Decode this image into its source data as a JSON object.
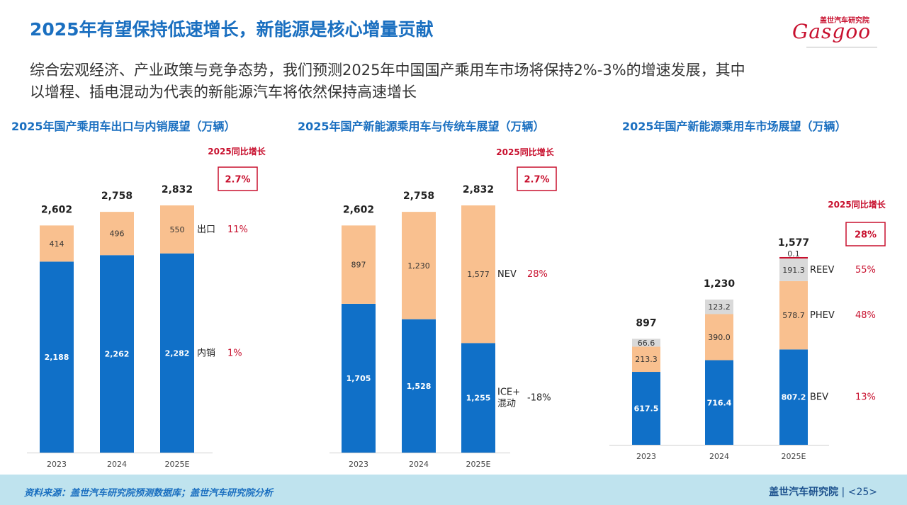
{
  "header": {
    "title": "2025年有望保持低速增长，新能源是核心增量贡献",
    "subtitle_line1": "综合宏观经济、产业政策与竞争态势，我们预测2025年中国国产乘用车市场将保持2%-3%的增速发展，其中",
    "subtitle_line2": "以增程、插电混动为代表的新能源汽车将依然保持高速增长"
  },
  "logo": {
    "cn": "盖世汽车研究院",
    "en": "Gasgoo"
  },
  "footer": {
    "source": "资料来源：盖世汽车研究院预测数据库；盖世汽车研究院分析",
    "org": "盖世汽车研究院",
    "divider": "|",
    "page": "<25>"
  },
  "colors": {
    "blue": "#1070c8",
    "orange": "#f9c08f",
    "gray": "#d9d9d9",
    "red": "#c8102e",
    "title_blue": "#1a6fc0"
  },
  "chart_data": [
    {
      "type": "bar",
      "stacked": true,
      "title": "2025年国产乘用车出口与内销展望（万辆）",
      "categories": [
        "2023",
        "2024",
        "2025E"
      ],
      "series": [
        {
          "name": "内销",
          "values": [
            2188,
            2262,
            2282
          ],
          "labels": [
            "2,188",
            "2,262",
            "2,282"
          ],
          "color": "#1070c8",
          "growth": "1%"
        },
        {
          "name": "出口",
          "values": [
            414,
            496,
            550
          ],
          "labels": [
            "414",
            "496",
            "550"
          ],
          "color": "#f9c08f",
          "growth": "11%"
        }
      ],
      "totals": [
        "2,602",
        "2,758",
        "2,832"
      ],
      "yoy_title": "2025同比增长",
      "yoy_value": "2.7%",
      "ylim": [
        0,
        2832
      ]
    },
    {
      "type": "bar",
      "stacked": true,
      "title": "2025年国产新能源乘用车与传统车展望（万辆）",
      "categories": [
        "2023",
        "2024",
        "2025E"
      ],
      "series": [
        {
          "name": "ICE+混动",
          "values": [
            1705,
            1528,
            1255
          ],
          "labels": [
            "1,705",
            "1,528",
            "1,255"
          ],
          "color": "#1070c8",
          "growth": "-18%"
        },
        {
          "name": "NEV",
          "values": [
            897,
            1230,
            1577
          ],
          "labels": [
            "897",
            "1,230",
            "1,577"
          ],
          "color": "#f9c08f",
          "growth": "28%"
        }
      ],
      "totals": [
        "2,602",
        "2,758",
        "2,832"
      ],
      "yoy_title": "2025同比增长",
      "yoy_value": "2.7%",
      "ylim": [
        0,
        2832
      ]
    },
    {
      "type": "bar",
      "stacked": true,
      "title": "2025年国产新能源乘用车市场展望（万辆）",
      "categories": [
        "2023",
        "2024",
        "2025E"
      ],
      "series": [
        {
          "name": "BEV",
          "values": [
            617.5,
            716.4,
            807.2
          ],
          "labels": [
            "617.5",
            "716.4",
            "807.2"
          ],
          "color": "#1070c8",
          "growth": "13%"
        },
        {
          "name": "PHEV",
          "values": [
            213.3,
            390.0,
            578.7
          ],
          "labels": [
            "213.3",
            "390.0",
            "578.7"
          ],
          "color": "#f9c08f",
          "growth": "48%"
        },
        {
          "name": "REEV",
          "values": [
            66.6,
            123.2,
            191.3
          ],
          "labels": [
            "66.6",
            "123.2",
            "191.3"
          ],
          "color": "#d9d9d9",
          "growth": "55%"
        },
        {
          "name": "",
          "values": [
            0,
            0,
            0.1
          ],
          "labels": [
            "",
            "",
            "0.1"
          ],
          "color": "#c8102e"
        }
      ],
      "totals": [
        "897",
        "1,230",
        "1,577"
      ],
      "yoy_title": "2025同比增长",
      "yoy_value": "28%",
      "ylim": [
        0,
        1577
      ]
    }
  ]
}
